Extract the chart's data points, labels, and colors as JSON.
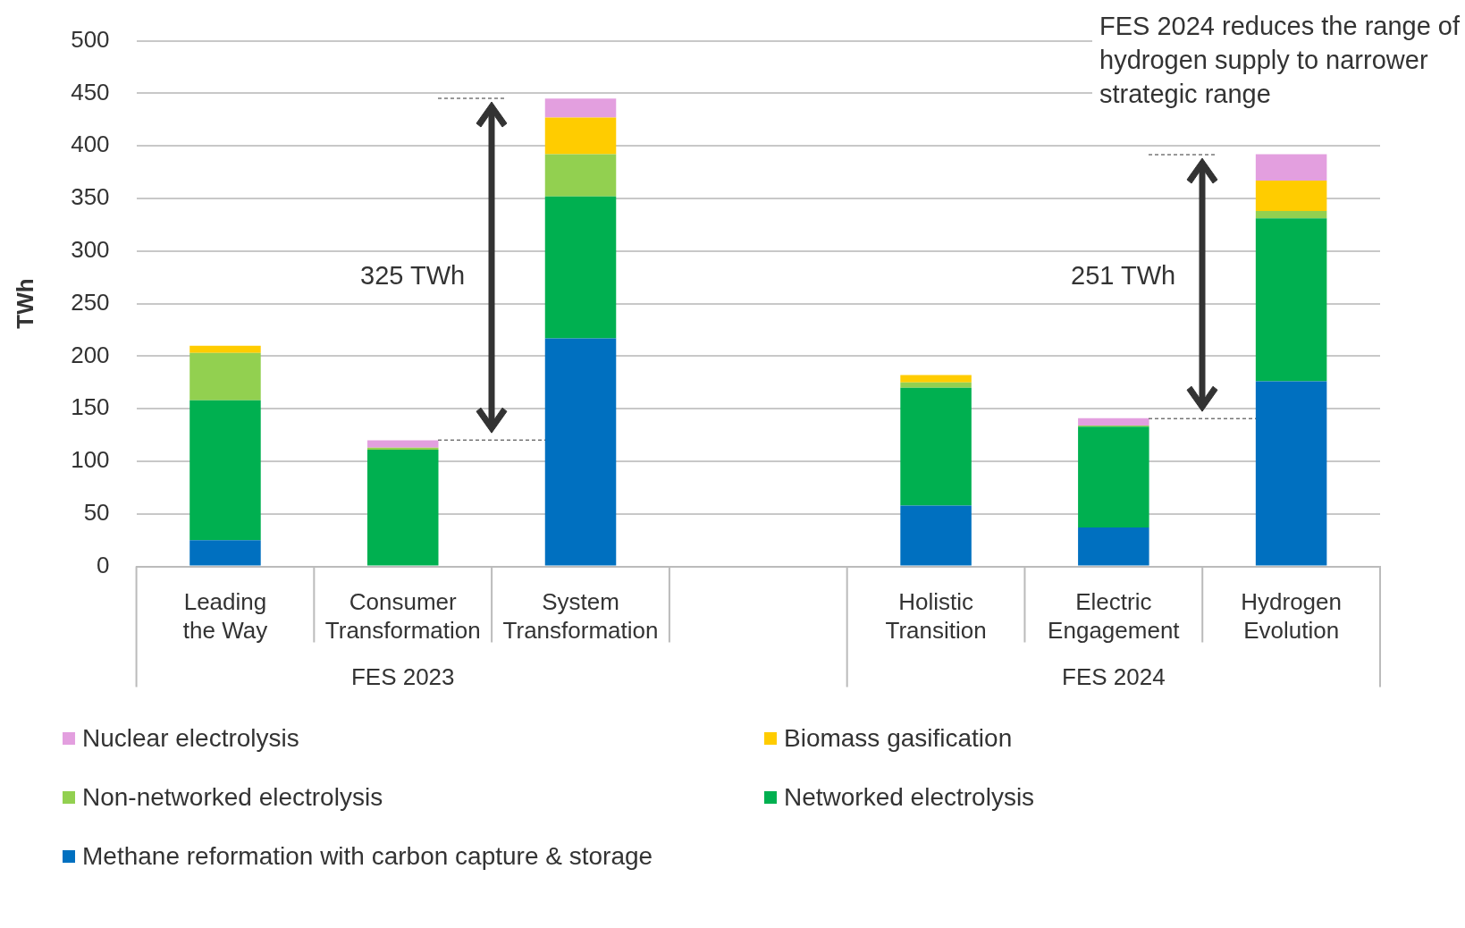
{
  "chart_data": {
    "type": "bar",
    "stacked": true,
    "ylabel": "TWh",
    "ylim": [
      0,
      500
    ],
    "yticks": [
      0,
      50,
      100,
      150,
      200,
      250,
      300,
      350,
      400,
      450,
      500
    ],
    "grid": "y",
    "legend": "bottom",
    "categories": [
      "Leading\nthe Way",
      "Consumer\nTransformation",
      "System\nTransformation",
      null,
      "Holistic\nTransition",
      "Electric\nEngagement",
      "Hydrogen\nEvolution"
    ],
    "series": [
      {
        "name": "Methane reformation with carbon capture & storage",
        "color": "#0070c0",
        "values": [
          25,
          0,
          217,
          null,
          58,
          37,
          176
        ]
      },
      {
        "name": "Networked electrolysis",
        "color": "#00b050",
        "values": [
          133,
          111,
          135,
          null,
          112,
          96,
          155
        ]
      },
      {
        "name": "Non-networked electrolysis",
        "color": "#92d050",
        "values": [
          45,
          2,
          40,
          null,
          5,
          1,
          7
        ]
      },
      {
        "name": "Biomass gasification",
        "color": "#ffcc00",
        "values": [
          7,
          0,
          35,
          null,
          7,
          0,
          29
        ]
      },
      {
        "name": "Nuclear electrolysis",
        "color": "#e39fdf",
        "values": [
          0,
          7,
          18,
          null,
          0,
          7,
          25
        ]
      }
    ],
    "annotations": [
      "325 TWh",
      "251 TWh",
      "FES 2024 reduces the range of hydrogen supply to narrower strategic range",
      "FES 2023",
      "FES 2024"
    ]
  }
}
